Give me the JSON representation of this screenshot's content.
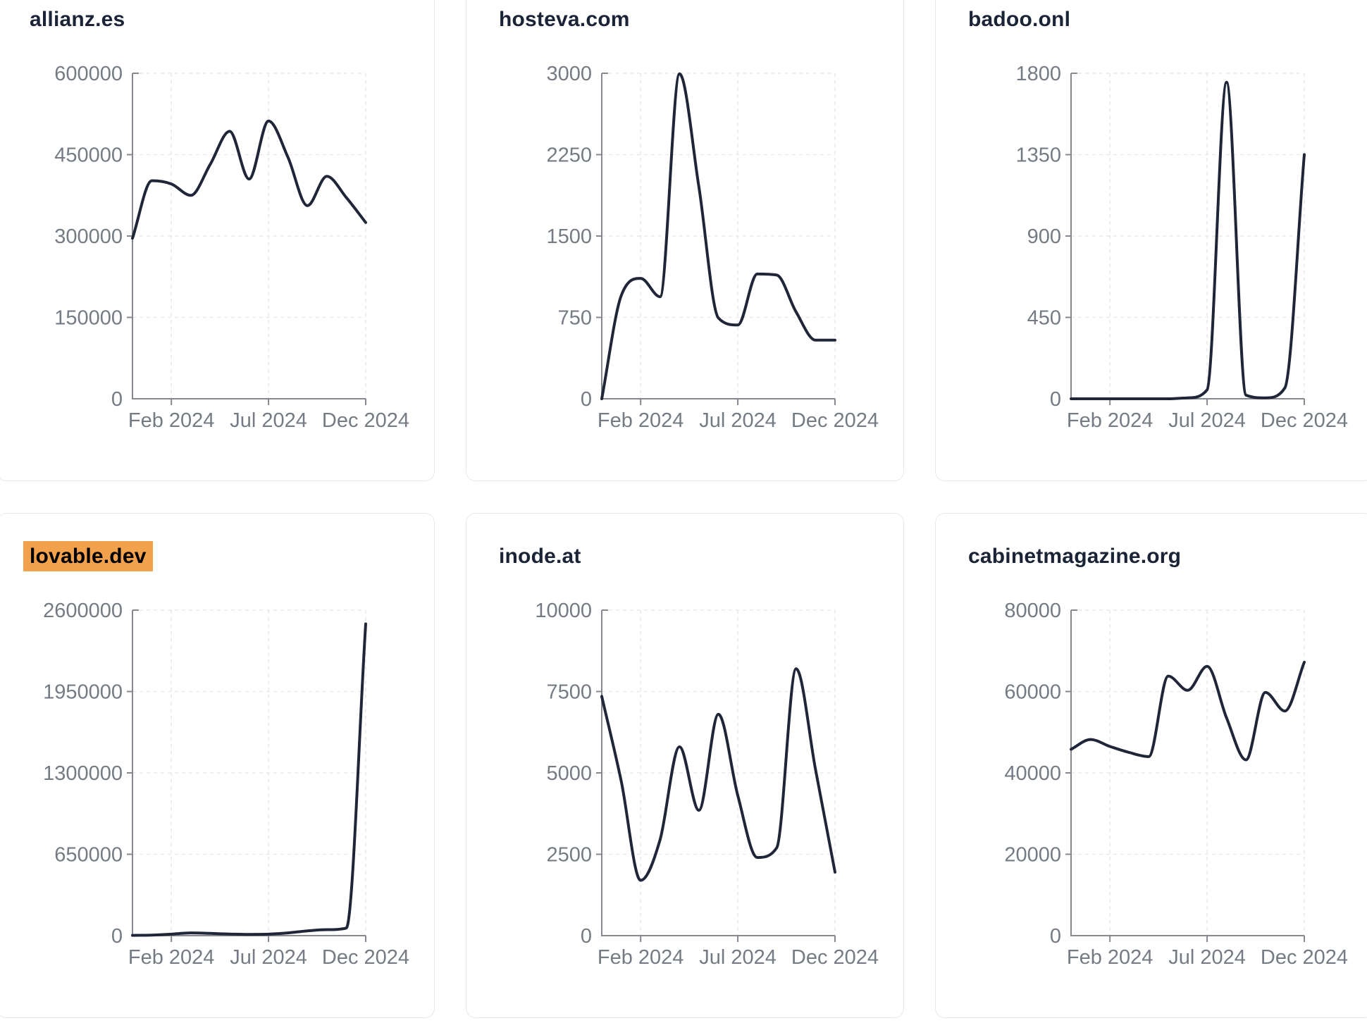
{
  "theme": {
    "line_color": "#1f2637",
    "axis_color": "#85898f",
    "grid_color": "#e9e9e9",
    "tick_label_color": "#757b85",
    "title_color": "#1b2337",
    "highlight_color": "#F2A24D",
    "card_border": "#e2e8f0",
    "card_bg": "#ffffff",
    "page_bg": "#ffffff"
  },
  "x_axis": {
    "months": [
      "2023-12",
      "2024-01",
      "2024-02",
      "2024-03",
      "2024-04",
      "2024-05",
      "2024-06",
      "2024-07",
      "2024-08",
      "2024-09",
      "2024-10",
      "2024-11",
      "2024-12"
    ],
    "tick_labels": [
      "Feb 2024",
      "Jul 2024",
      "Dec 2024"
    ],
    "tick_month_index": [
      2,
      7,
      12
    ]
  },
  "chart_data": [
    {
      "type": "line",
      "title": "allianz.es",
      "highlighted": false,
      "ylim": [
        0,
        600000
      ],
      "y_ticks": [
        0,
        150000,
        300000,
        450000,
        600000
      ],
      "x_tick_labels": [
        "Feb 2024",
        "Jul 2024",
        "Dec 2024"
      ],
      "values": [
        296000,
        402000,
        396000,
        375000,
        432000,
        493000,
        405000,
        512000,
        445000,
        356000,
        410000,
        371000,
        325000
      ]
    },
    {
      "type": "line",
      "title": "hosteva.com",
      "highlighted": false,
      "ylim": [
        0,
        3000
      ],
      "y_ticks": [
        0,
        750,
        1500,
        2250,
        3000
      ],
      "x_tick_labels": [
        "Feb 2024",
        "Jul 2024",
        "Dec 2024"
      ],
      "values": [
        0,
        950,
        1110,
        940,
        2995,
        1950,
        745,
        680,
        1150,
        1140,
        800,
        540,
        540
      ]
    },
    {
      "type": "line",
      "title": "badoo.onl",
      "highlighted": false,
      "ylim": [
        0,
        1800
      ],
      "y_ticks": [
        0,
        450,
        900,
        1350,
        1800
      ],
      "x_tick_labels": [
        "Feb 2024",
        "Jul 2024",
        "Dec 2024"
      ],
      "values": [
        0,
        0,
        0,
        0,
        0,
        0,
        5,
        50,
        1750,
        20,
        5,
        60,
        1350
      ]
    },
    {
      "type": "line",
      "title": "lovable.dev",
      "highlighted": true,
      "ylim": [
        0,
        2600000
      ],
      "y_ticks": [
        0,
        650000,
        1300000,
        1950000,
        2600000
      ],
      "x_tick_labels": [
        "Feb 2024",
        "Jul 2024",
        "Dec 2024"
      ],
      "values": [
        2000,
        4000,
        12000,
        22000,
        18000,
        13000,
        10000,
        12000,
        22000,
        38000,
        48000,
        60000,
        2490000
      ]
    },
    {
      "type": "line",
      "title": "inode.at",
      "highlighted": false,
      "ylim": [
        0,
        10000
      ],
      "y_ticks": [
        0,
        2500,
        5000,
        7500,
        10000
      ],
      "x_tick_labels": [
        "Feb 2024",
        "Jul 2024",
        "Dec 2024"
      ],
      "values": [
        7350,
        4750,
        1700,
        2950,
        5800,
        3850,
        6800,
        4300,
        2400,
        2700,
        8200,
        5100,
        1950
      ]
    },
    {
      "type": "line",
      "title": "cabinetmagazine.org",
      "highlighted": false,
      "ylim": [
        0,
        80000
      ],
      "y_ticks": [
        0,
        20000,
        40000,
        60000,
        80000
      ],
      "x_tick_labels": [
        "Feb 2024",
        "Jul 2024",
        "Dec 2024"
      ],
      "values": [
        45800,
        48200,
        46500,
        45000,
        44000,
        63800,
        60300,
        66200,
        53500,
        43200,
        59800,
        55200,
        67200
      ]
    }
  ]
}
